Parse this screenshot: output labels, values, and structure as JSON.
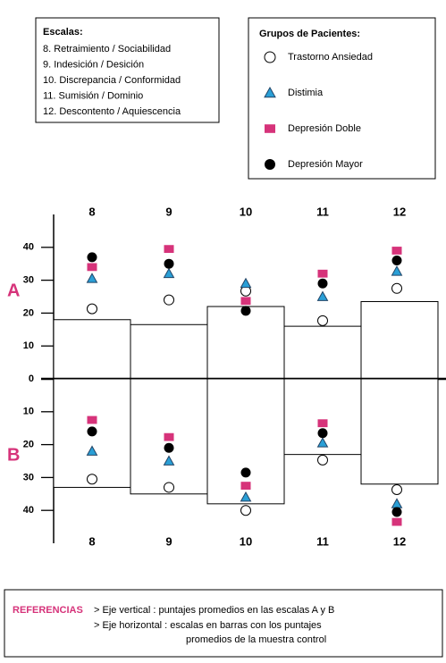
{
  "chart_data": {
    "type": "dot",
    "categories": [
      "8",
      "9",
      "10",
      "11",
      "12"
    ],
    "scales_title": "Escalas:",
    "scales": [
      "8. Retraimiento / Sociabilidad",
      "9. Indesición / Desición",
      "10. Discrepancia / Conformidad",
      "11. Sumisión / Dominio",
      "12. Descontento / Aquiescencia"
    ],
    "legend_title": "Grupos de Pacientes:",
    "series": [
      {
        "name": "Trastorno Ansiedad",
        "color": "#ffffff",
        "marker": "circle"
      },
      {
        "name": "Distimia",
        "color": "#2a9fd6",
        "marker": "triangle"
      },
      {
        "name": "Depresión Doble",
        "color": "#d6337a",
        "marker": "square"
      },
      {
        "name": "Depresión Mayor",
        "color": "#000000",
        "marker": "circle"
      }
    ],
    "panels": [
      {
        "label": "A",
        "direction": "up",
        "ylim": [
          0,
          50
        ],
        "yticks": [
          0,
          10,
          20,
          30,
          40
        ],
        "control": [
          18,
          16.5,
          22,
          16,
          23.5
        ],
        "values": [
          [
            21.3,
            24,
            26.7,
            17.7,
            27.5
          ],
          [
            30.5,
            32,
            29,
            25,
            32.7
          ],
          [
            34,
            39.5,
            23.7,
            32,
            39
          ],
          [
            37,
            35,
            20.7,
            29,
            36
          ]
        ]
      },
      {
        "label": "B",
        "direction": "down",
        "ylim": [
          0,
          50
        ],
        "yticks": [
          10,
          20,
          30,
          40
        ],
        "control": [
          33,
          35,
          38,
          23,
          32
        ],
        "values": [
          [
            30.5,
            33,
            40,
            24.7,
            33.7
          ],
          [
            22,
            25,
            36,
            19.5,
            38
          ],
          [
            12.5,
            17.7,
            32.5,
            13.5,
            43.5
          ],
          [
            16,
            21,
            28.5,
            16.5,
            40.5
          ]
        ]
      }
    ],
    "references": {
      "title": "REFERENCIAS",
      "lines": [
        "> Eje vertical : puntajes promedios en las escalas A y B",
        "> Eje horizontal : escalas en barras con los puntajes",
        "promedios de la muestra control"
      ]
    }
  }
}
